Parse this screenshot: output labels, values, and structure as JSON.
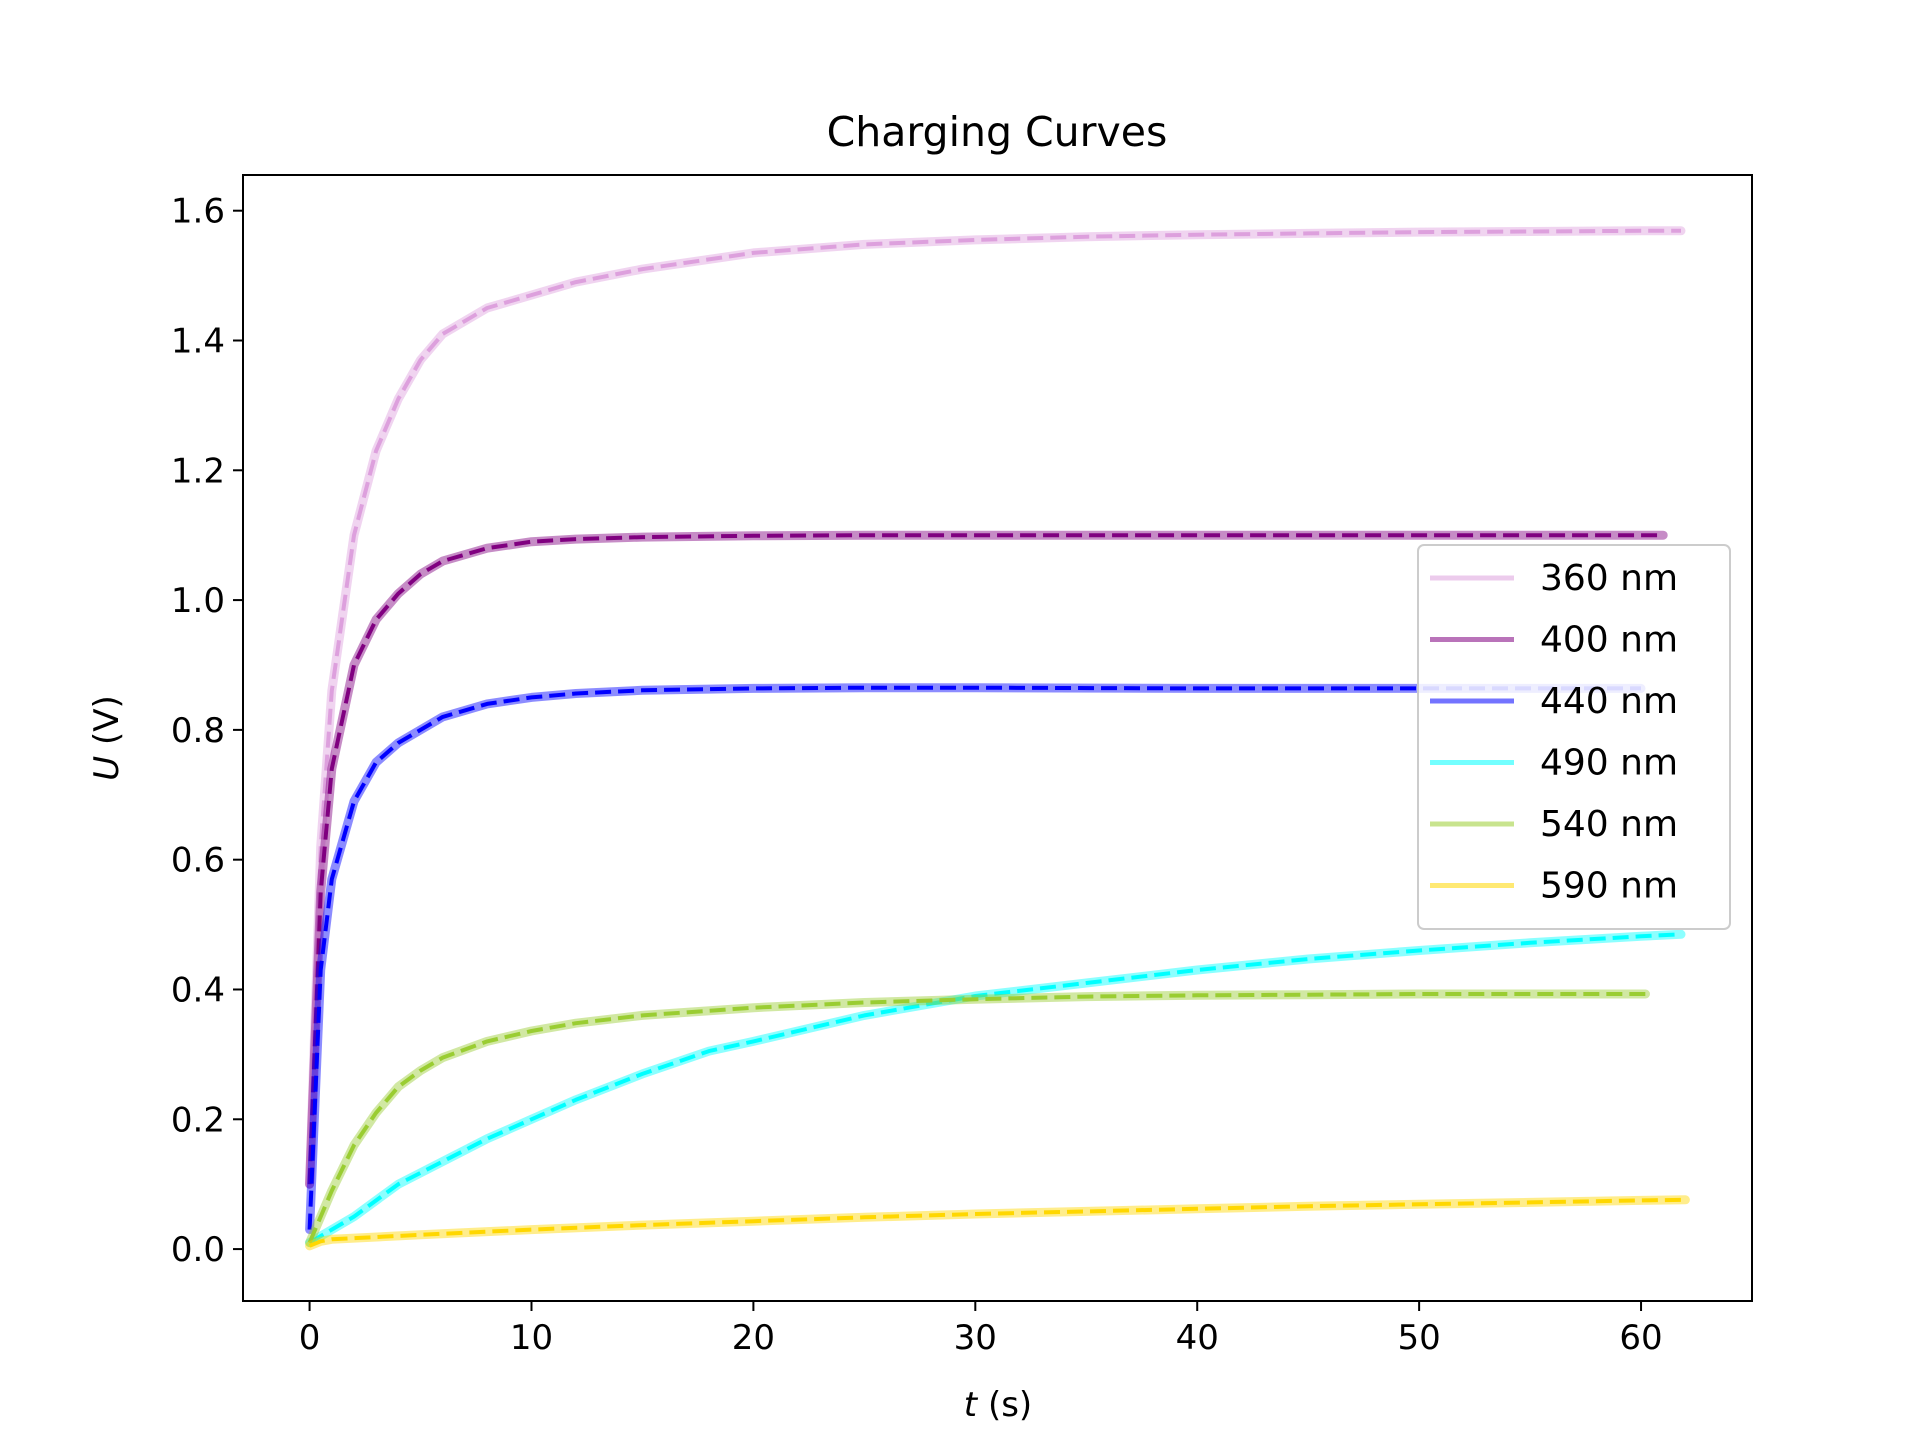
{
  "chart_data": {
    "type": "line",
    "title": "Charging Curves",
    "xlabel_var": "t",
    "xlabel_unit": " (s)",
    "ylabel_var": "U",
    "ylabel_unit": " (V)",
    "xlim": [
      -3,
      65
    ],
    "ylim": [
      -0.08,
      1.655
    ],
    "xticks": [
      0,
      10,
      20,
      30,
      40,
      50,
      60
    ],
    "yticks": [
      0.0,
      0.2,
      0.4,
      0.6,
      0.8,
      1.0,
      1.2,
      1.4,
      1.6
    ],
    "ytick_labels": [
      "0.0",
      "0.2",
      "0.4",
      "0.6",
      "0.8",
      "1.0",
      "1.2",
      "1.4",
      "1.6"
    ],
    "legend_position": "center-right",
    "series": [
      {
        "name": "360 nm",
        "color": "#dda0dd",
        "x": [
          0,
          0.5,
          1,
          2,
          3,
          4,
          5,
          6,
          8,
          10,
          12,
          15,
          20,
          25,
          30,
          35,
          40,
          45,
          50,
          55,
          60,
          61.8
        ],
        "y": [
          0.1,
          0.62,
          0.86,
          1.1,
          1.23,
          1.31,
          1.37,
          1.41,
          1.45,
          1.47,
          1.49,
          1.51,
          1.535,
          1.548,
          1.555,
          1.56,
          1.563,
          1.565,
          1.567,
          1.568,
          1.569,
          1.569
        ]
      },
      {
        "name": "400 nm",
        "color": "#800080",
        "x": [
          0,
          0.5,
          1,
          2,
          3,
          4,
          5,
          6,
          8,
          10,
          12,
          15,
          20,
          25,
          30,
          40,
          50,
          61
        ],
        "y": [
          0.1,
          0.55,
          0.74,
          0.9,
          0.97,
          1.01,
          1.04,
          1.06,
          1.08,
          1.09,
          1.094,
          1.097,
          1.099,
          1.1,
          1.1,
          1.1,
          1.1,
          1.1
        ]
      },
      {
        "name": "440 nm",
        "color": "#0000ff",
        "x": [
          0,
          0.5,
          1,
          2,
          3,
          4,
          5,
          6,
          8,
          10,
          12,
          15,
          20,
          25,
          30,
          40,
          50,
          60
        ],
        "y": [
          0.03,
          0.43,
          0.57,
          0.69,
          0.75,
          0.78,
          0.8,
          0.82,
          0.84,
          0.85,
          0.856,
          0.861,
          0.864,
          0.865,
          0.865,
          0.864,
          0.864,
          0.864
        ]
      },
      {
        "name": "490 nm",
        "color": "#00ffff",
        "x": [
          0,
          2,
          4,
          6,
          8,
          10,
          12,
          15,
          18,
          20,
          25,
          30,
          35,
          40,
          45,
          50,
          55,
          60,
          61.8
        ],
        "y": [
          0.01,
          0.05,
          0.1,
          0.135,
          0.17,
          0.2,
          0.23,
          0.27,
          0.305,
          0.32,
          0.36,
          0.39,
          0.41,
          0.43,
          0.447,
          0.46,
          0.472,
          0.482,
          0.485
        ]
      },
      {
        "name": "540 nm",
        "color": "#9acd32",
        "x": [
          0,
          1,
          2,
          3,
          4,
          5,
          6,
          8,
          10,
          12,
          15,
          20,
          25,
          30,
          35,
          40,
          45,
          50,
          55,
          60.2
        ],
        "y": [
          0.01,
          0.09,
          0.16,
          0.21,
          0.25,
          0.275,
          0.295,
          0.32,
          0.336,
          0.348,
          0.36,
          0.372,
          0.38,
          0.385,
          0.389,
          0.391,
          0.392,
          0.393,
          0.393,
          0.393
        ]
      },
      {
        "name": "590 nm",
        "color": "#ffd700",
        "x": [
          0,
          0.5,
          1,
          5,
          10,
          15,
          20,
          25,
          30,
          35,
          40,
          45,
          50,
          55,
          60,
          62
        ],
        "y": [
          0.005,
          0.012,
          0.015,
          0.022,
          0.03,
          0.037,
          0.043,
          0.049,
          0.054,
          0.058,
          0.062,
          0.066,
          0.069,
          0.072,
          0.075,
          0.076
        ]
      }
    ]
  }
}
